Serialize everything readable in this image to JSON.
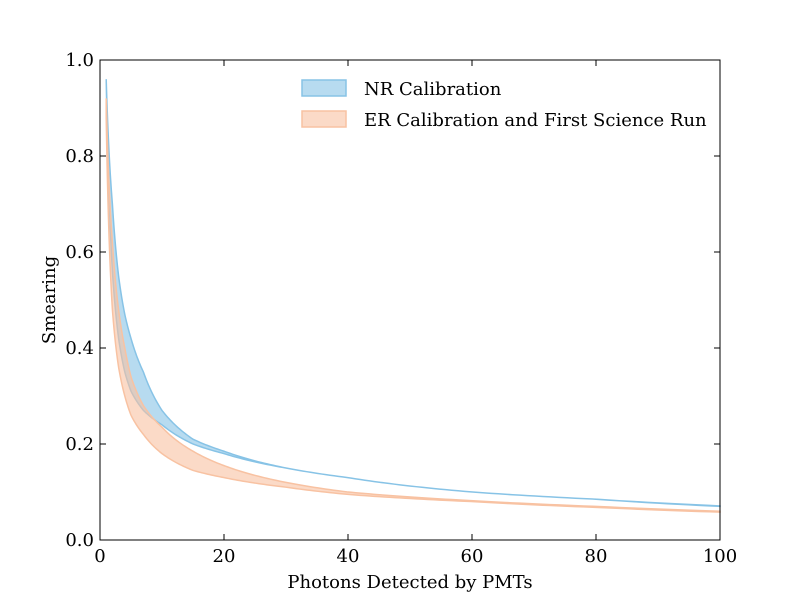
{
  "chart_data": {
    "type": "area",
    "title": "",
    "xlabel": "Photons Detected by PMTs",
    "ylabel": "Smearing",
    "xlim": [
      0,
      100
    ],
    "ylim": [
      0.0,
      1.0
    ],
    "x_ticks": [
      "0",
      "20",
      "40",
      "60",
      "80",
      "100"
    ],
    "y_ticks": [
      "0.0",
      "0.2",
      "0.4",
      "0.6",
      "0.8",
      "1.0"
    ],
    "grid": false,
    "legend_position": "top-right",
    "series": [
      {
        "name": "NR Calibration",
        "color": "#87c3e6",
        "x": [
          1,
          2,
          3,
          4,
          5,
          7,
          10,
          15,
          20,
          30,
          40,
          60,
          80,
          100
        ],
        "lower": [
          0.96,
          0.56,
          0.42,
          0.35,
          0.31,
          0.27,
          0.24,
          0.2,
          0.18,
          0.15,
          0.13,
          0.1,
          0.085,
          0.07
        ],
        "upper": [
          0.96,
          0.7,
          0.55,
          0.47,
          0.42,
          0.35,
          0.27,
          0.21,
          0.185,
          0.15,
          0.13,
          0.1,
          0.085,
          0.071
        ]
      },
      {
        "name": "ER Calibration and First Science Run",
        "color": "#f8c2a2",
        "x": [
          1,
          2,
          3,
          4,
          5,
          7,
          10,
          15,
          20,
          30,
          40,
          60,
          80,
          100
        ],
        "lower": [
          0.88,
          0.48,
          0.36,
          0.3,
          0.26,
          0.22,
          0.18,
          0.145,
          0.13,
          0.11,
          0.095,
          0.08,
          0.068,
          0.058
        ],
        "upper": [
          0.92,
          0.62,
          0.48,
          0.4,
          0.34,
          0.28,
          0.235,
          0.185,
          0.155,
          0.12,
          0.1,
          0.082,
          0.07,
          0.06
        ]
      }
    ]
  }
}
